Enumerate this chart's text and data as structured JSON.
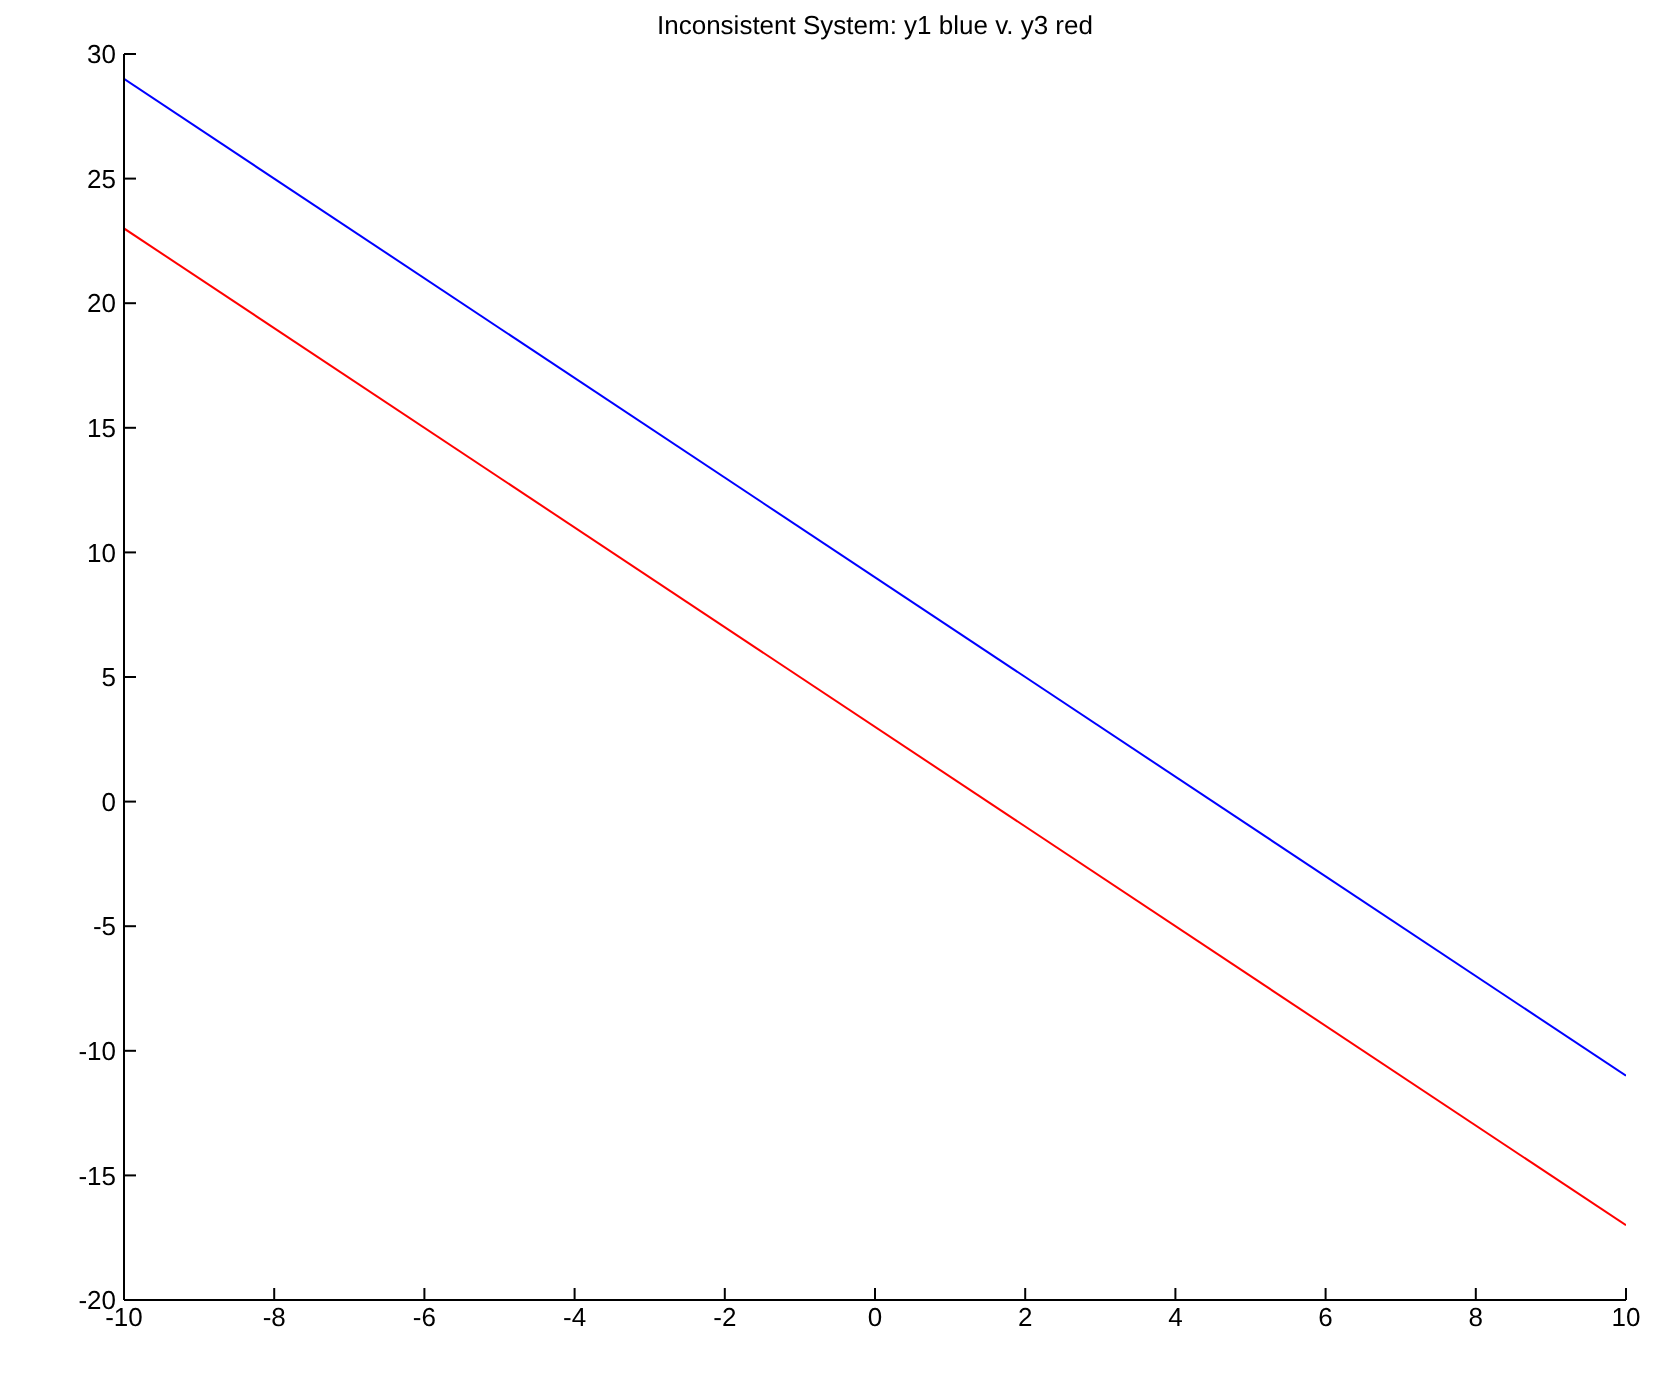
{
  "chart_data": {
    "type": "line",
    "title": "Inconsistent System: y1 blue v. y3 red",
    "x": [
      -10,
      10
    ],
    "series": [
      {
        "color": "#0000ff",
        "values": [
          29,
          -11
        ]
      },
      {
        "color": "#ff0000",
        "values": [
          23,
          -17
        ]
      }
    ],
    "xlim": [
      -10,
      10
    ],
    "xticks": [
      -10,
      -8,
      -6,
      -4,
      -2,
      0,
      2,
      4,
      6,
      8,
      10
    ],
    "ylim": [
      -20,
      30
    ],
    "yticks": [
      -20,
      -15,
      -10,
      -5,
      0,
      5,
      10,
      15,
      20,
      25,
      30
    ],
    "grid": false,
    "legend": false,
    "marker": "none",
    "line_style": "solid"
  }
}
